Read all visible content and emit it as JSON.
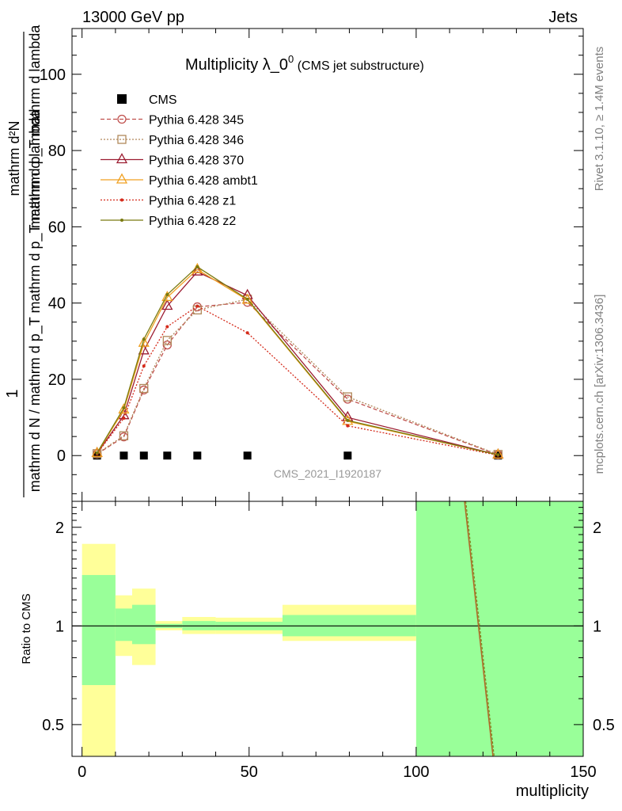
{
  "header": {
    "left": "13000 GeV pp",
    "right": "Jets"
  },
  "side_labels": {
    "rivet": "Rivet 3.1.10, ≥ 1.4M events",
    "mcplots": "mcplots.cern.ch [arXiv:1306.3436]"
  },
  "chart_data": [
    {
      "type": "line",
      "title": "Multiplicity λ_0⁰",
      "subtitle": "(CMS jet substructure)",
      "watermark": "CMS_2021_I1920187",
      "ylabel_numerator": "1",
      "ylabel_denominator": "mathrm d N / mathrm d p_T mathrm d p_T mathrm d lambda",
      "ylabel_top": "mathrm d²N",
      "ylabel_top_denominator": "mathrm d p_T mathrm d lambda",
      "xlim": [
        -3,
        150
      ],
      "ylim": [
        -12,
        112
      ],
      "yticks": [
        0,
        20,
        40,
        60,
        80,
        100
      ],
      "xticks": [
        0,
        50,
        100,
        150
      ],
      "legend_position": "top-left",
      "series": [
        {
          "name": "CMS",
          "color": "#000000",
          "marker": "square",
          "line": "none",
          "x": [
            4.5,
            12.5,
            18.5,
            25.5,
            34.5,
            49.5,
            79.5,
            124.5
          ],
          "y": [
            0,
            0,
            0,
            0,
            0,
            0,
            0,
            0
          ]
        },
        {
          "name": "Pythia 6.428 345",
          "color": "#c0504d",
          "marker": "circle",
          "line": "dashed",
          "x": [
            4.5,
            12.5,
            18.5,
            25.5,
            34.5,
            49.5,
            79.5,
            124.5
          ],
          "y": [
            0.4,
            4.9,
            17.2,
            29.0,
            39.0,
            40.2,
            14.8,
            0.2
          ]
        },
        {
          "name": "Pythia 6.428 346",
          "color": "#b0885a",
          "marker": "open-square",
          "line": "dotted",
          "x": [
            4.5,
            12.5,
            18.5,
            25.5,
            34.5,
            49.5,
            79.5,
            124.5
          ],
          "y": [
            0.5,
            5.2,
            17.6,
            30.2,
            38.2,
            41.0,
            15.4,
            0.3
          ]
        },
        {
          "name": "Pythia 6.428 370",
          "color": "#9b1b30",
          "marker": "triangle",
          "line": "solid",
          "x": [
            4.5,
            12.5,
            18.5,
            25.5,
            34.5,
            49.5,
            79.5,
            124.5
          ],
          "y": [
            0.6,
            10.5,
            27.5,
            39.2,
            48.2,
            42.0,
            10.0,
            0.2
          ]
        },
        {
          "name": "Pythia 6.428 ambt1",
          "color": "#f0a020",
          "marker": "triangle",
          "line": "solid",
          "x": [
            4.5,
            12.5,
            18.5,
            25.5,
            34.5,
            49.5,
            79.5,
            124.5
          ],
          "y": [
            0.6,
            12.0,
            29.5,
            41.5,
            48.8,
            40.8,
            9.0,
            0.2
          ]
        },
        {
          "name": "Pythia 6.428 z1",
          "color": "#d42a1a",
          "marker": "dot",
          "line": "dotted",
          "x": [
            4.5,
            12.5,
            18.5,
            25.5,
            34.5,
            49.5,
            79.5,
            124.5
          ],
          "y": [
            0.5,
            9.8,
            23.5,
            33.8,
            39.2,
            32.2,
            7.8,
            0.1
          ]
        },
        {
          "name": "Pythia 6.428 z2",
          "color": "#7a7a10",
          "marker": "dot",
          "line": "solid",
          "x": [
            4.5,
            12.5,
            18.5,
            25.5,
            34.5,
            49.5,
            79.5,
            124.5
          ],
          "y": [
            0.7,
            12.5,
            30.5,
            42.2,
            49.5,
            41.0,
            9.2,
            0.2
          ]
        }
      ]
    },
    {
      "type": "area",
      "ylabel": "Ratio to CMS",
      "xlabel": "multiplicity",
      "ylim": [
        0.4,
        2.4
      ],
      "yscale": "log",
      "yticks": [
        0.5,
        1,
        2
      ],
      "xticks": [
        0,
        50,
        100,
        150
      ],
      "bands": [
        {
          "x0": 0,
          "x1": 10,
          "yellow": [
            0.35,
            1.78
          ],
          "green": [
            0.66,
            1.43
          ]
        },
        {
          "x0": 10,
          "x1": 15,
          "yellow": [
            0.81,
            1.24
          ],
          "green": [
            0.9,
            1.13
          ]
        },
        {
          "x0": 15,
          "x1": 22,
          "yellow": [
            0.76,
            1.3
          ],
          "green": [
            0.88,
            1.16
          ]
        },
        {
          "x0": 22,
          "x1": 30,
          "yellow": [
            0.97,
            1.035
          ],
          "green": [
            0.985,
            1.015
          ]
        },
        {
          "x0": 30,
          "x1": 40,
          "yellow": [
            0.945,
            1.065
          ],
          "green": [
            0.97,
            1.035
          ]
        },
        {
          "x0": 40,
          "x1": 60,
          "yellow": [
            0.945,
            1.06
          ],
          "green": [
            0.97,
            1.03
          ]
        },
        {
          "x0": 60,
          "x1": 100,
          "yellow": [
            0.9,
            1.16
          ],
          "green": [
            0.93,
            1.08
          ]
        },
        {
          "x0": 100,
          "x1": 150,
          "yellow": [
            0.35,
            2.4
          ],
          "green": [
            0.35,
            2.4
          ]
        }
      ],
      "ratio_line": {
        "x": [
          114.5,
          123.0
        ],
        "y": [
          2.4,
          0.4
        ],
        "color": "#b06a2a"
      }
    }
  ]
}
